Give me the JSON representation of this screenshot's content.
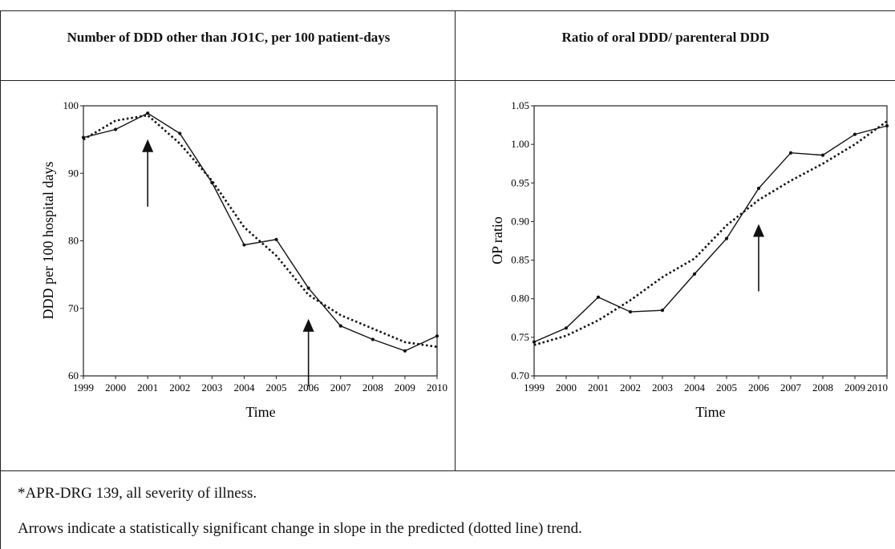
{
  "headers": {
    "left": "Number of DDD other than JO1C, per 100 patient-days",
    "right": "Ratio of oral DDD/ parenteral DDD"
  },
  "footnotes": {
    "line1": "*APR-DRG 139, all severity of illness.",
    "line2": "Arrows indicate a statistically significant change in slope in the predicted (dotted line) trend."
  },
  "chart_data": [
    {
      "type": "line",
      "xlabel": "Time",
      "ylabel": "DDD per 100 hospital days",
      "x": [
        1999,
        2000,
        2001,
        2002,
        2003,
        2004,
        2005,
        2006,
        2007,
        2008,
        2009,
        2010
      ],
      "xlim": [
        1999,
        2010
      ],
      "ylim": [
        60,
        100
      ],
      "yticks": [
        "60",
        "70",
        "80",
        "90",
        "100"
      ],
      "series": [
        {
          "style": "solid-with-markers",
          "values": [
            95.3,
            96.5,
            98.9,
            95.9,
            88.6,
            79.4,
            80.2,
            73.0,
            67.4,
            65.4,
            63.7,
            65.9
          ]
        },
        {
          "style": "dotted",
          "values": [
            95.0,
            97.8,
            98.6,
            94.4,
            88.9,
            82.0,
            77.8,
            72.0,
            69.0,
            67.0,
            65.0,
            64.3
          ]
        }
      ],
      "arrows": [
        2001,
        2006
      ]
    },
    {
      "type": "line",
      "xlabel": "Time",
      "ylabel": "OP ratio",
      "x": [
        1999,
        2000,
        2001,
        2002,
        2003,
        2004,
        2005,
        2006,
        2007,
        2008,
        2009,
        2010
      ],
      "xlim": [
        1999,
        2010
      ],
      "ylim": [
        0.7,
        1.05
      ],
      "yticks": [
        "0.70",
        "0.75",
        "0.80",
        "0.85",
        "0.90",
        "0.95",
        "1.00",
        "1.05"
      ],
      "series": [
        {
          "style": "solid-with-markers",
          "values": [
            0.744,
            0.762,
            0.802,
            0.783,
            0.785,
            0.832,
            0.878,
            0.943,
            0.989,
            0.986,
            1.013,
            1.024
          ]
        },
        {
          "style": "dotted",
          "values": [
            0.74,
            0.752,
            0.772,
            0.798,
            0.828,
            0.852,
            0.895,
            0.928,
            0.953,
            0.975,
            1.0,
            1.03
          ]
        }
      ],
      "arrows": [
        2006
      ]
    }
  ]
}
